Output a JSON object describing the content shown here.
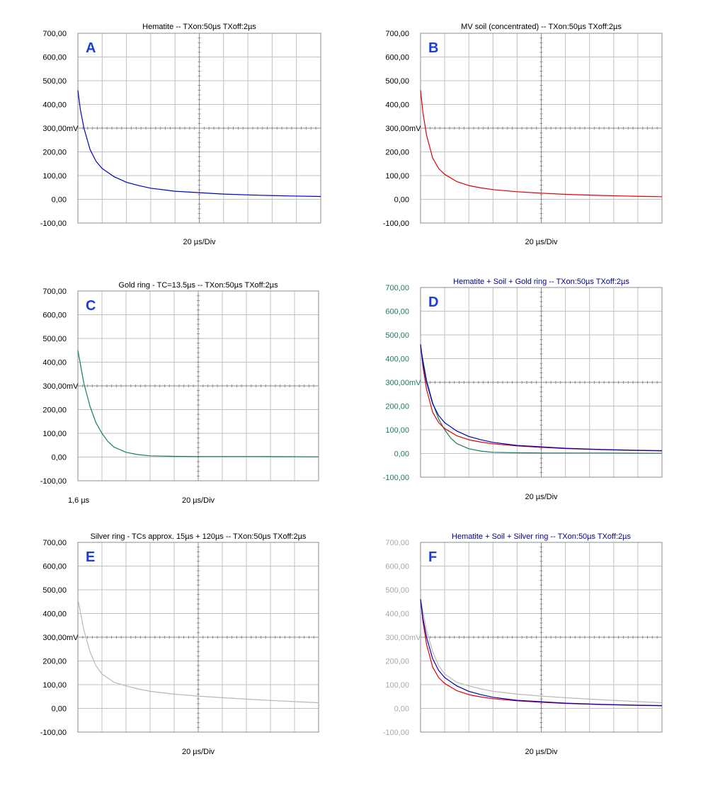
{
  "colors": {
    "hematite": "#0000c0",
    "soil": "#e00000",
    "gold": "#1a7a60",
    "silver": "#b8b8b8",
    "grid": "#c0c0c0",
    "frame": "#8c8c8c",
    "label": "#1a3de0"
  },
  "chart_data": [
    {
      "type": "line",
      "panel_label": "A",
      "title": "Hematite -- TXon:50µs TXoff:2µs",
      "title_color": "black",
      "ylabels": [
        "700,00",
        "600,00",
        "500,00",
        "400,00",
        "300,00",
        "200,00",
        "100,00",
        "0,00",
        "-100,00"
      ],
      "ylabel_color": "black",
      "unit": "mV",
      "unit_color": "black",
      "xlabel": "20 µs/Div",
      "x_start_label": "",
      "ylim": [
        -100,
        700
      ],
      "x_divisions": 10,
      "x_range_us": [
        0,
        200
      ],
      "grid": true,
      "series": [
        {
          "color_key": "hematite",
          "x": [
            0,
            2,
            5,
            10,
            15,
            20,
            30,
            40,
            50,
            60,
            80,
            100,
            120,
            150,
            175,
            200
          ],
          "y": [
            460,
            380,
            300,
            210,
            160,
            130,
            95,
            72,
            58,
            47,
            34,
            28,
            22,
            17,
            14,
            12
          ]
        }
      ]
    },
    {
      "type": "line",
      "panel_label": "B",
      "title": "MV soil (concentrated) -- TXon:50µs TXoff:2µs",
      "title_color": "black",
      "ylabels": [
        "700,00",
        "600,00",
        "500,00",
        "400,00",
        "300,00",
        "200,00",
        "100,00",
        "0,00",
        "-100,00"
      ],
      "ylabel_color": "black",
      "unit": "mV",
      "unit_color": "black",
      "xlabel": "20 µs/Div",
      "x_start_label": "",
      "ylim": [
        -100,
        700
      ],
      "x_divisions": 10,
      "x_range_us": [
        0,
        200
      ],
      "grid": true,
      "series": [
        {
          "color_key": "soil",
          "x": [
            0,
            2,
            5,
            10,
            15,
            20,
            30,
            40,
            50,
            60,
            80,
            100,
            120,
            150,
            175,
            200
          ],
          "y": [
            460,
            365,
            270,
            175,
            130,
            105,
            75,
            58,
            48,
            41,
            32,
            26,
            21,
            16,
            13,
            11
          ]
        }
      ]
    },
    {
      "type": "line",
      "panel_label": "C",
      "title": "Gold ring - TC=13.5µs -- TXon:50µs TXoff:2µs",
      "title_color": "black",
      "ylabels": [
        "700,00",
        "600,00",
        "500,00",
        "400,00",
        "300,00",
        "200,00",
        "100,00",
        "0,00",
        "-100,00"
      ],
      "ylabel_color": "black",
      "unit": "mV",
      "unit_color": "black",
      "xlabel": "20 µs/Div",
      "x_start_label": "1,6 µs",
      "ylim": [
        -100,
        700
      ],
      "x_divisions": 10,
      "x_range_us": [
        0,
        200
      ],
      "grid": true,
      "series": [
        {
          "color_key": "gold",
          "x": [
            0,
            5,
            10,
            15,
            20,
            25,
            30,
            40,
            50,
            60,
            80,
            100,
            150,
            200
          ],
          "y": [
            450,
            310,
            215,
            145,
            100,
            65,
            42,
            20,
            10,
            5,
            3,
            2,
            2,
            1
          ]
        }
      ]
    },
    {
      "type": "line",
      "panel_label": "D",
      "title": "Hematite + Soil + Gold ring -- TXon:50µs TXoff:2µs",
      "title_color": "navy",
      "ylabels": [
        "700,00",
        "600,00",
        "500,00",
        "400,00",
        "300,00",
        "200,00",
        "100,00",
        "0,00",
        "-100,00"
      ],
      "ylabel_color": "green",
      "unit": "mV",
      "unit_color": "green",
      "xlabel": "20 µs/Div",
      "x_start_label": "",
      "ylim": [
        -100,
        700
      ],
      "x_divisions": 10,
      "x_range_us": [
        0,
        200
      ],
      "grid": true,
      "series": [
        {
          "color_key": "gold",
          "x": [
            0,
            5,
            10,
            15,
            20,
            25,
            30,
            40,
            50,
            60,
            80,
            100,
            150,
            200
          ],
          "y": [
            450,
            310,
            215,
            145,
            100,
            65,
            42,
            20,
            10,
            5,
            3,
            2,
            2,
            1
          ]
        },
        {
          "color_key": "soil",
          "x": [
            0,
            2,
            5,
            10,
            15,
            20,
            30,
            40,
            50,
            60,
            80,
            100,
            120,
            150,
            175,
            200
          ],
          "y": [
            460,
            365,
            270,
            175,
            130,
            105,
            75,
            58,
            48,
            41,
            32,
            26,
            21,
            16,
            13,
            11
          ]
        },
        {
          "color_key": "hematite",
          "x": [
            0,
            2,
            5,
            10,
            15,
            20,
            30,
            40,
            50,
            60,
            80,
            100,
            120,
            150,
            175,
            200
          ],
          "y": [
            460,
            380,
            300,
            210,
            160,
            130,
            95,
            72,
            58,
            47,
            34,
            28,
            22,
            17,
            14,
            12
          ]
        }
      ]
    },
    {
      "type": "line",
      "panel_label": "E",
      "title": "Silver ring - TCs approx. 15µs + 120µs -- TXon:50µs TXoff:2µs",
      "title_color": "black",
      "ylabels": [
        "700,00",
        "600,00",
        "500,00",
        "400,00",
        "300,00",
        "200,00",
        "100,00",
        "0,00",
        "-100,00"
      ],
      "ylabel_color": "black",
      "unit": "mV",
      "unit_color": "black",
      "xlabel": "20 µs/Div",
      "x_start_label": "",
      "ylim": [
        -100,
        700
      ],
      "x_divisions": 10,
      "x_range_us": [
        0,
        200
      ],
      "grid": true,
      "series": [
        {
          "color_key": "silver",
          "x": [
            0,
            5,
            10,
            15,
            20,
            30,
            40,
            50,
            60,
            80,
            100,
            120,
            150,
            175,
            200
          ],
          "y": [
            460,
            330,
            240,
            180,
            145,
            110,
            95,
            82,
            72,
            60,
            52,
            45,
            36,
            30,
            24
          ]
        }
      ]
    },
    {
      "type": "line",
      "panel_label": "F",
      "title": "Hematite + Soil + Silver ring -- TXon:50µs TXoff:2µs",
      "title_color": "navy",
      "ylabels": [
        "700,00",
        "600,00",
        "500,00",
        "400,00",
        "300,00",
        "200,00",
        "100,00",
        "0,00",
        "-100,00"
      ],
      "ylabel_color": "gray",
      "unit": "mV",
      "unit_color": "gray",
      "xlabel": "20 µs/Div",
      "x_start_label": "",
      "ylim": [
        -100,
        700
      ],
      "x_divisions": 10,
      "x_range_us": [
        0,
        200
      ],
      "grid": true,
      "series": [
        {
          "color_key": "silver",
          "x": [
            0,
            5,
            10,
            15,
            20,
            30,
            40,
            50,
            60,
            80,
            100,
            120,
            150,
            175,
            200
          ],
          "y": [
            460,
            330,
            240,
            180,
            145,
            110,
            95,
            82,
            72,
            60,
            52,
            45,
            36,
            30,
            24
          ]
        },
        {
          "color_key": "soil",
          "x": [
            0,
            2,
            5,
            10,
            15,
            20,
            30,
            40,
            50,
            60,
            80,
            100,
            120,
            150,
            175,
            200
          ],
          "y": [
            460,
            365,
            270,
            175,
            130,
            105,
            75,
            58,
            48,
            41,
            32,
            26,
            21,
            16,
            13,
            11
          ]
        },
        {
          "color_key": "hematite",
          "x": [
            0,
            2,
            5,
            10,
            15,
            20,
            30,
            40,
            50,
            60,
            80,
            100,
            120,
            150,
            175,
            200
          ],
          "y": [
            460,
            380,
            300,
            210,
            160,
            130,
            95,
            72,
            58,
            47,
            34,
            28,
            22,
            17,
            14,
            12
          ]
        }
      ]
    }
  ]
}
